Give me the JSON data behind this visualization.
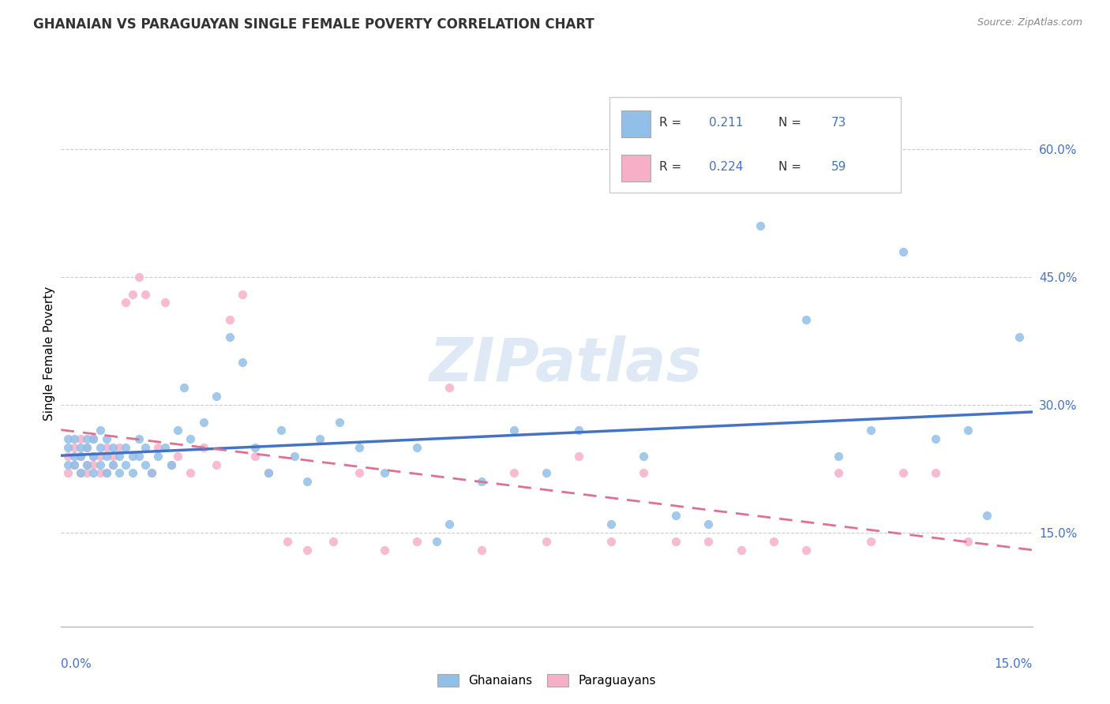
{
  "title": "GHANAIAN VS PARAGUAYAN SINGLE FEMALE POVERTY CORRELATION CHART",
  "source_text": "Source: ZipAtlas.com",
  "ylabel": "Single Female Poverty",
  "ytick_labels": [
    "15.0%",
    "30.0%",
    "45.0%",
    "60.0%"
  ],
  "ytick_values": [
    0.15,
    0.3,
    0.45,
    0.6
  ],
  "xlim": [
    0.0,
    0.15
  ],
  "ylim": [
    0.04,
    0.68
  ],
  "xmin_label": "0.0%",
  "xmax_label": "15.0%",
  "ghanaian_color": "#92bfe8",
  "paraguayan_color": "#f7afc8",
  "ghanaian_line_color": "#4472c4",
  "paraguayan_line_color": "#e07090",
  "paraguayan_line_dash": true,
  "ghanaian_R": "0.211",
  "ghanaian_N": "73",
  "paraguayan_R": "0.224",
  "paraguayan_N": "59",
  "watermark": "ZIPatlas",
  "ghanaian_x": [
    0.001,
    0.001,
    0.001,
    0.002,
    0.002,
    0.002,
    0.003,
    0.003,
    0.003,
    0.004,
    0.004,
    0.004,
    0.005,
    0.005,
    0.005,
    0.006,
    0.006,
    0.006,
    0.007,
    0.007,
    0.007,
    0.008,
    0.008,
    0.009,
    0.009,
    0.01,
    0.01,
    0.011,
    0.011,
    0.012,
    0.012,
    0.013,
    0.013,
    0.014,
    0.015,
    0.016,
    0.017,
    0.018,
    0.019,
    0.02,
    0.022,
    0.024,
    0.026,
    0.028,
    0.03,
    0.032,
    0.034,
    0.036,
    0.038,
    0.04,
    0.043,
    0.046,
    0.05,
    0.055,
    0.058,
    0.06,
    0.065,
    0.07,
    0.075,
    0.08,
    0.085,
    0.09,
    0.095,
    0.1,
    0.108,
    0.115,
    0.12,
    0.125,
    0.13,
    0.135,
    0.14,
    0.143,
    0.148
  ],
  "ghanaian_y": [
    0.26,
    0.23,
    0.25,
    0.24,
    0.23,
    0.26,
    0.25,
    0.22,
    0.24,
    0.26,
    0.23,
    0.25,
    0.22,
    0.24,
    0.26,
    0.23,
    0.25,
    0.27,
    0.22,
    0.24,
    0.26,
    0.25,
    0.23,
    0.24,
    0.22,
    0.25,
    0.23,
    0.24,
    0.22,
    0.26,
    0.24,
    0.23,
    0.25,
    0.22,
    0.24,
    0.25,
    0.23,
    0.27,
    0.32,
    0.26,
    0.28,
    0.31,
    0.38,
    0.35,
    0.25,
    0.22,
    0.27,
    0.24,
    0.21,
    0.26,
    0.28,
    0.25,
    0.22,
    0.25,
    0.14,
    0.16,
    0.21,
    0.27,
    0.22,
    0.27,
    0.16,
    0.24,
    0.17,
    0.16,
    0.51,
    0.4,
    0.24,
    0.27,
    0.48,
    0.26,
    0.27,
    0.17,
    0.38
  ],
  "paraguayan_x": [
    0.001,
    0.001,
    0.002,
    0.002,
    0.003,
    0.003,
    0.003,
    0.004,
    0.004,
    0.004,
    0.005,
    0.005,
    0.005,
    0.006,
    0.006,
    0.007,
    0.007,
    0.008,
    0.008,
    0.009,
    0.01,
    0.011,
    0.012,
    0.013,
    0.014,
    0.015,
    0.016,
    0.017,
    0.018,
    0.02,
    0.022,
    0.024,
    0.026,
    0.028,
    0.03,
    0.032,
    0.035,
    0.038,
    0.042,
    0.046,
    0.05,
    0.055,
    0.06,
    0.065,
    0.07,
    0.075,
    0.08,
    0.085,
    0.09,
    0.095,
    0.1,
    0.105,
    0.11,
    0.115,
    0.12,
    0.125,
    0.13,
    0.135,
    0.14
  ],
  "paraguayan_y": [
    0.24,
    0.22,
    0.25,
    0.23,
    0.24,
    0.22,
    0.26,
    0.23,
    0.25,
    0.22,
    0.24,
    0.23,
    0.26,
    0.22,
    0.24,
    0.25,
    0.22,
    0.24,
    0.23,
    0.25,
    0.42,
    0.43,
    0.45,
    0.43,
    0.22,
    0.25,
    0.42,
    0.23,
    0.24,
    0.22,
    0.25,
    0.23,
    0.4,
    0.43,
    0.24,
    0.22,
    0.14,
    0.13,
    0.14,
    0.22,
    0.13,
    0.14,
    0.32,
    0.13,
    0.22,
    0.14,
    0.24,
    0.14,
    0.22,
    0.14,
    0.14,
    0.13,
    0.14,
    0.13,
    0.22,
    0.14,
    0.22,
    0.22,
    0.14
  ]
}
